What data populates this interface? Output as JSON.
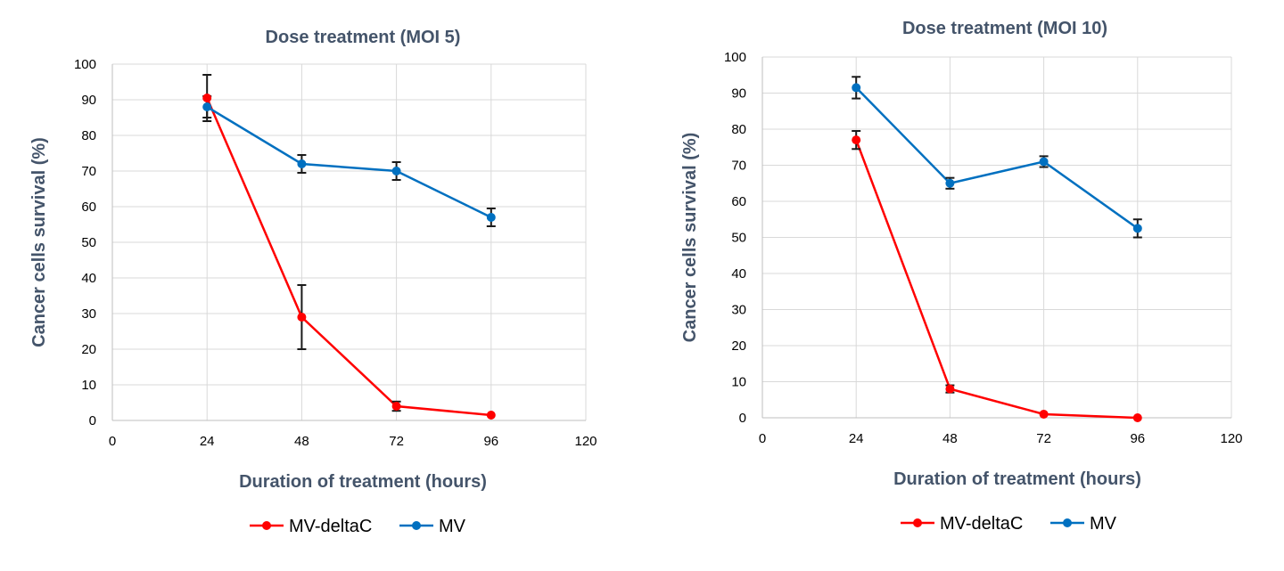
{
  "chart_data": [
    {
      "type": "line",
      "title": "Dose treatment (MOI 5)",
      "xlabel": "Duration of treatment (hours)",
      "ylabel": "Cancer cells survival (%)",
      "xlim": [
        0,
        120
      ],
      "ylim": [
        0,
        100
      ],
      "xticks": [
        "0",
        "24",
        "48",
        "72",
        "96",
        "120"
      ],
      "yticks": [
        "0",
        "10",
        "20",
        "30",
        "40",
        "50",
        "60",
        "70",
        "80",
        "90",
        "100"
      ],
      "grid": true,
      "legend_position": "bottom",
      "series": [
        {
          "name": "MV-deltaC",
          "color": "#ff0000",
          "x": [
            24,
            48,
            72,
            96
          ],
          "y": [
            90.5,
            29,
            4,
            1.5
          ],
          "err": [
            6.5,
            9,
            1.3,
            0
          ]
        },
        {
          "name": "MV",
          "color": "#0070c0",
          "x": [
            24,
            48,
            72,
            96
          ],
          "y": [
            88,
            72,
            70,
            57
          ],
          "err": [
            3,
            2.5,
            2.5,
            2.5
          ]
        }
      ]
    },
    {
      "type": "line",
      "title": "Dose treatment (MOI 10)",
      "xlabel": "Duration of treatment (hours)",
      "ylabel": "Cancer cells survival (%)",
      "xlim": [
        0,
        120
      ],
      "ylim": [
        0,
        100
      ],
      "xticks": [
        "0",
        "24",
        "48",
        "72",
        "96",
        "120"
      ],
      "yticks": [
        "0",
        "10",
        "20",
        "30",
        "40",
        "50",
        "60",
        "70",
        "80",
        "90",
        "100"
      ],
      "grid": true,
      "legend_position": "bottom",
      "series": [
        {
          "name": "MV-deltaC",
          "color": "#ff0000",
          "x": [
            24,
            48,
            72,
            96
          ],
          "y": [
            77,
            8,
            1,
            0
          ],
          "err": [
            2.5,
            1,
            0,
            0
          ]
        },
        {
          "name": "MV",
          "color": "#0070c0",
          "x": [
            24,
            48,
            72,
            96
          ],
          "y": [
            91.5,
            65,
            71,
            52.5
          ],
          "err": [
            3,
            1.5,
            1.5,
            2.5
          ]
        }
      ]
    }
  ]
}
